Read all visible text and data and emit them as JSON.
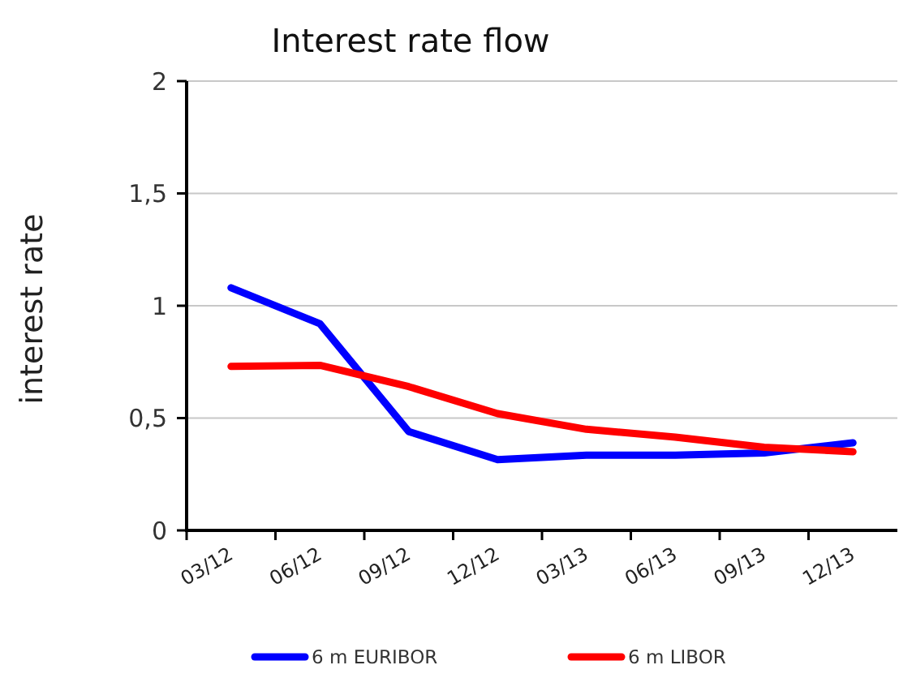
{
  "chart_data": {
    "type": "line",
    "title": "Interest rate flow",
    "ylabel": "interest rate",
    "categories": [
      "03/12",
      "06/12",
      "09/12",
      "12/12",
      "03/13",
      "06/13",
      "09/13",
      "12/13"
    ],
    "series": [
      {
        "name": "6 m EURIBOR",
        "color": "#0000ff",
        "values": [
          1.08,
          0.92,
          0.44,
          0.315,
          0.335,
          0.335,
          0.345,
          0.39
        ]
      },
      {
        "name": "6 m LIBOR",
        "color": "#ff0000",
        "values": [
          0.73,
          0.735,
          0.64,
          0.52,
          0.45,
          0.415,
          0.37,
          0.35
        ]
      }
    ],
    "ylim": [
      0,
      2
    ],
    "yticks": [
      0,
      {
        "value": 0.5,
        "label": "0,5"
      },
      1,
      {
        "value": 1.5,
        "label": "1,5"
      },
      2
    ],
    "grid": "y",
    "legend": "bottom",
    "line_style": "solid"
  }
}
